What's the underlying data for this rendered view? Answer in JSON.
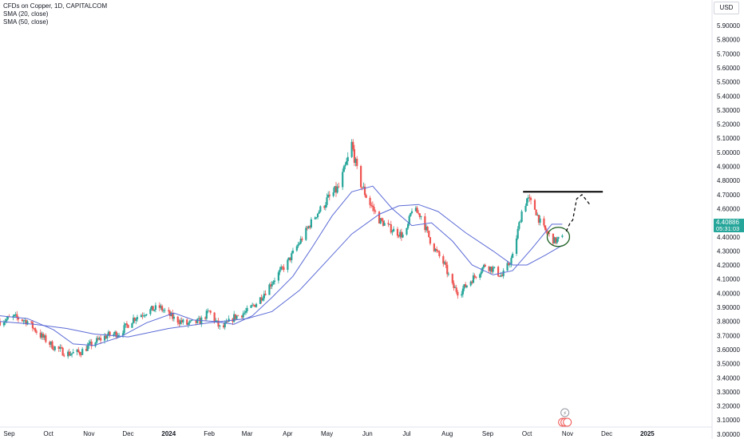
{
  "legend": {
    "title": "CFDs on Copper, 1D, CAPITALCOM",
    "sma20": "SMA (20, close)",
    "sma50": "SMA (50, close)"
  },
  "currency": "USD",
  "last_price": {
    "value": "4.40886",
    "countdown": "05:31:03"
  },
  "colors": {
    "up": "#26a69a",
    "down": "#ef5350",
    "sma": "#5b6bd6",
    "line": "#000000",
    "axis_text": "#131722",
    "price_tag": "#26a69a"
  },
  "chart_data": {
    "type": "candlestick",
    "title": "CFDs on Copper, 1D, CAPITALCOM",
    "ylabel": "USD",
    "ylim": [
      2.95,
      5.95
    ],
    "y_ticks": [
      "3.00000",
      "3.10000",
      "3.20000",
      "3.30000",
      "3.40000",
      "3.50000",
      "3.60000",
      "3.70000",
      "3.80000",
      "3.90000",
      "4.00000",
      "4.10000",
      "4.20000",
      "4.30000",
      "4.40000",
      "4.50000",
      "4.60000",
      "4.70000",
      "4.80000",
      "4.90000",
      "5.00000",
      "5.10000",
      "5.20000",
      "5.30000",
      "5.40000",
      "5.50000",
      "5.60000",
      "5.70000",
      "5.80000",
      "5.90000"
    ],
    "x_ticks": [
      "Sep",
      "Oct",
      "Nov",
      "Dec",
      "2024",
      "Feb",
      "Mar",
      "Apr",
      "May",
      "Jun",
      "Jul",
      "Aug",
      "Sep",
      "Oct",
      "Nov",
      "Dec",
      "2025"
    ],
    "x_range": [
      "2023-08-25",
      "2025-01-31"
    ],
    "last_price": 4.40886,
    "price_path": [
      [
        "2023-08-25",
        3.8
      ],
      [
        "2023-09-05",
        3.83
      ],
      [
        "2023-09-15",
        3.8
      ],
      [
        "2023-09-25",
        3.7
      ],
      [
        "2023-10-05",
        3.62
      ],
      [
        "2023-10-15",
        3.57
      ],
      [
        "2023-10-25",
        3.58
      ],
      [
        "2023-11-05",
        3.65
      ],
      [
        "2023-11-15",
        3.7
      ],
      [
        "2023-11-25",
        3.72
      ],
      [
        "2023-12-05",
        3.82
      ],
      [
        "2023-12-15",
        3.87
      ],
      [
        "2023-12-25",
        3.9
      ],
      [
        "2024-01-05",
        3.82
      ],
      [
        "2024-01-15",
        3.78
      ],
      [
        "2024-01-25",
        3.8
      ],
      [
        "2024-02-01",
        3.87
      ],
      [
        "2024-02-10",
        3.74
      ],
      [
        "2024-02-20",
        3.83
      ],
      [
        "2024-03-01",
        3.87
      ],
      [
        "2024-03-10",
        3.95
      ],
      [
        "2024-03-20",
        4.08
      ],
      [
        "2024-04-01",
        4.22
      ],
      [
        "2024-04-10",
        4.36
      ],
      [
        "2024-04-20",
        4.52
      ],
      [
        "2024-04-30",
        4.65
      ],
      [
        "2024-05-10",
        4.75
      ],
      [
        "2024-05-17",
        4.95
      ],
      [
        "2024-05-20",
        5.06
      ],
      [
        "2024-05-25",
        4.82
      ],
      [
        "2024-06-01",
        4.67
      ],
      [
        "2024-06-10",
        4.52
      ],
      [
        "2024-06-20",
        4.45
      ],
      [
        "2024-06-30",
        4.4
      ],
      [
        "2024-07-05",
        4.6
      ],
      [
        "2024-07-12",
        4.55
      ],
      [
        "2024-07-20",
        4.35
      ],
      [
        "2024-07-30",
        4.2
      ],
      [
        "2024-08-05",
        4.05
      ],
      [
        "2024-08-10",
        4.0
      ],
      [
        "2024-08-20",
        4.1
      ],
      [
        "2024-08-30",
        4.2
      ],
      [
        "2024-09-05",
        4.17
      ],
      [
        "2024-09-12",
        4.12
      ],
      [
        "2024-09-20",
        4.26
      ],
      [
        "2024-09-27",
        4.58
      ],
      [
        "2024-10-01",
        4.67
      ],
      [
        "2024-10-07",
        4.6
      ],
      [
        "2024-10-12",
        4.48
      ],
      [
        "2024-10-17",
        4.42
      ],
      [
        "2024-10-22",
        4.37
      ],
      [
        "2024-10-25",
        4.38
      ],
      [
        "2024-10-28",
        4.41
      ]
    ],
    "series": [
      {
        "name": "SMA (20, close)",
        "points": [
          [
            "2023-08-25",
            3.84
          ],
          [
            "2023-09-15",
            3.82
          ],
          [
            "2023-10-05",
            3.74
          ],
          [
            "2023-10-20",
            3.64
          ],
          [
            "2023-11-05",
            3.63
          ],
          [
            "2023-11-25",
            3.69
          ],
          [
            "2023-12-15",
            3.79
          ],
          [
            "2024-01-05",
            3.86
          ],
          [
            "2024-01-20",
            3.81
          ],
          [
            "2024-02-05",
            3.8
          ],
          [
            "2024-02-20",
            3.78
          ],
          [
            "2024-03-05",
            3.84
          ],
          [
            "2024-03-20",
            3.97
          ],
          [
            "2024-04-05",
            4.12
          ],
          [
            "2024-04-20",
            4.33
          ],
          [
            "2024-05-05",
            4.55
          ],
          [
            "2024-05-20",
            4.72
          ],
          [
            "2024-06-05",
            4.76
          ],
          [
            "2024-06-20",
            4.6
          ],
          [
            "2024-07-05",
            4.48
          ],
          [
            "2024-07-20",
            4.5
          ],
          [
            "2024-08-05",
            4.37
          ],
          [
            "2024-08-20",
            4.2
          ],
          [
            "2024-09-05",
            4.13
          ],
          [
            "2024-09-20",
            4.16
          ],
          [
            "2024-10-05",
            4.32
          ],
          [
            "2024-10-20",
            4.49
          ],
          [
            "2024-10-28",
            4.49
          ]
        ]
      },
      {
        "name": "SMA (50, close)",
        "points": [
          [
            "2023-08-25",
            3.8
          ],
          [
            "2023-09-20",
            3.78
          ],
          [
            "2023-10-15",
            3.75
          ],
          [
            "2023-11-05",
            3.71
          ],
          [
            "2023-12-01",
            3.69
          ],
          [
            "2024-01-01",
            3.75
          ],
          [
            "2024-02-01",
            3.79
          ],
          [
            "2024-03-01",
            3.82
          ],
          [
            "2024-03-20",
            3.87
          ],
          [
            "2024-04-10",
            4.02
          ],
          [
            "2024-05-01",
            4.23
          ],
          [
            "2024-05-20",
            4.42
          ],
          [
            "2024-06-10",
            4.56
          ],
          [
            "2024-06-25",
            4.62
          ],
          [
            "2024-07-10",
            4.63
          ],
          [
            "2024-07-25",
            4.58
          ],
          [
            "2024-08-15",
            4.43
          ],
          [
            "2024-09-05",
            4.3
          ],
          [
            "2024-09-20",
            4.2
          ],
          [
            "2024-10-01",
            4.2
          ],
          [
            "2024-10-15",
            4.27
          ],
          [
            "2024-10-28",
            4.34
          ]
        ]
      }
    ],
    "annotations": {
      "resistance_line": {
        "price": 4.72,
        "from": "2024-09-28",
        "to": "2024-11-28"
      },
      "circle_center": {
        "date": "2024-10-25",
        "price": 4.4
      },
      "projection_path": [
        [
          "2024-10-31",
          4.44
        ],
        [
          "2024-11-03",
          4.5
        ],
        [
          "2024-11-05",
          4.52
        ],
        [
          "2024-11-08",
          4.67
        ],
        [
          "2024-11-12",
          4.7
        ],
        [
          "2024-11-18",
          4.63
        ]
      ]
    },
    "grid": false
  }
}
